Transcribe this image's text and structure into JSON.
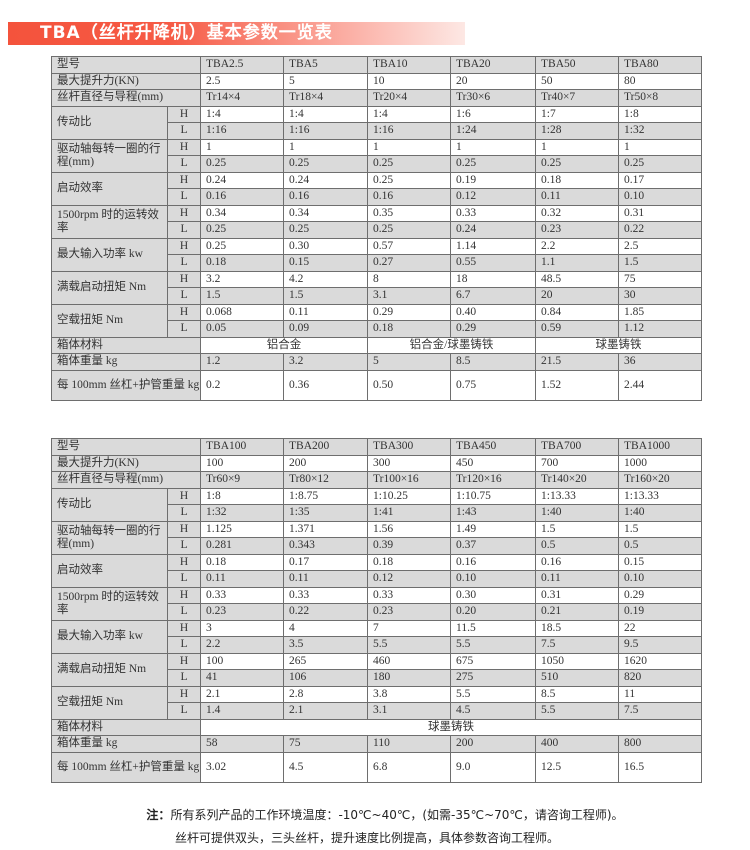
{
  "title": "TBA（丝杆升降机）基本参数一览表",
  "accent_color": "#f4533c",
  "tables": [
    {
      "header_label": "型号",
      "models": [
        "TBA2.5",
        "TBA5",
        "TBA10",
        "TBA20",
        "TBA50",
        "TBA80"
      ],
      "rows": [
        {
          "type": "simple",
          "label": "最大提升力(KN)",
          "values": [
            "2.5",
            "5",
            "10",
            "20",
            "50",
            "80"
          ]
        },
        {
          "type": "simple",
          "label": "丝杆直径与导程(mm)",
          "values": [
            "Tr14×4",
            "Tr18×4",
            "Tr20×4",
            "Tr30×6",
            "Tr40×7",
            "Tr50×8"
          ]
        },
        {
          "type": "pair",
          "label": "传动比",
          "H": [
            "1:4",
            "1:4",
            "1:4",
            "1:6",
            "1:7",
            "1:8"
          ],
          "L": [
            "1:16",
            "1:16",
            "1:16",
            "1:24",
            "1:28",
            "1:32"
          ]
        },
        {
          "type": "pair",
          "label": "驱动轴每转一圈的行程(mm)",
          "H": [
            "1",
            "1",
            "1",
            "1",
            "1",
            "1"
          ],
          "L": [
            "0.25",
            "0.25",
            "0.25",
            "0.25",
            "0.25",
            "0.25"
          ]
        },
        {
          "type": "pair",
          "label": "启动效率",
          "H": [
            "0.24",
            "0.24",
            "0.25",
            "0.19",
            "0.18",
            "0.17"
          ],
          "L": [
            "0.16",
            "0.16",
            "0.16",
            "0.12",
            "0.11",
            "0.10"
          ]
        },
        {
          "type": "pair",
          "label": "1500rpm 时的运转效率",
          "H": [
            "0.34",
            "0.34",
            "0.35",
            "0.33",
            "0.32",
            "0.31"
          ],
          "L": [
            "0.25",
            "0.25",
            "0.25",
            "0.24",
            "0.23",
            "0.22"
          ]
        },
        {
          "type": "pair",
          "label": "最大输入功率 kw",
          "H": [
            "0.25",
            "0.30",
            "0.57",
            "1.14",
            "2.2",
            "2.5"
          ],
          "L": [
            "0.18",
            "0.15",
            "0.27",
            "0.55",
            "1.1",
            "1.5"
          ]
        },
        {
          "type": "pair",
          "label": "满载启动扭矩 Nm",
          "H": [
            "3.2",
            "4.2",
            "8",
            "18",
            "48.5",
            "75"
          ],
          "L": [
            "1.5",
            "1.5",
            "3.1",
            "6.7",
            "20",
            "30"
          ]
        },
        {
          "type": "pair",
          "label": "空载扭矩 Nm",
          "H": [
            "0.068",
            "0.11",
            "0.29",
            "0.40",
            "0.84",
            "1.85"
          ],
          "L": [
            "0.05",
            "0.09",
            "0.18",
            "0.29",
            "0.59",
            "1.12"
          ]
        },
        {
          "type": "merged",
          "label": "箱体材料",
          "spans": [
            {
              "text": "铝合金",
              "cols": 2
            },
            {
              "text": "铝合金/球墨铸铁",
              "cols": 2
            },
            {
              "text": "球墨铸铁",
              "cols": 2
            }
          ]
        },
        {
          "type": "simple",
          "label": "箱体重量 kg",
          "values": [
            "1.2",
            "3.2",
            "5",
            "8.5",
            "21.5",
            "36"
          ]
        },
        {
          "type": "tall",
          "label": "每 100mm 丝杠+护管重量 kg",
          "values": [
            "0.2",
            "0.36",
            "0.50",
            "0.75",
            "1.52",
            "2.44"
          ]
        }
      ]
    },
    {
      "header_label": "型号",
      "models": [
        "TBA100",
        "TBA200",
        "TBA300",
        "TBA450",
        "TBA700",
        "TBA1000"
      ],
      "rows": [
        {
          "type": "simple",
          "label": "最大提升力(KN)",
          "values": [
            "100",
            "200",
            "300",
            "450",
            "700",
            "1000"
          ]
        },
        {
          "type": "simple",
          "label": "丝杆直径与导程(mm)",
          "values": [
            "Tr60×9",
            "Tr80×12",
            "Tr100×16",
            "Tr120×16",
            "Tr140×20",
            "Tr160×20"
          ]
        },
        {
          "type": "pair",
          "label": "传动比",
          "H": [
            "1:8",
            "1:8.75",
            "1:10.25",
            "1:10.75",
            "1:13.33",
            "1:13.33"
          ],
          "L": [
            "1:32",
            "1:35",
            "1:41",
            "1:43",
            "1:40",
            "1:40"
          ]
        },
        {
          "type": "pair",
          "label": "驱动轴每转一圈的行程(mm)",
          "H": [
            "1.125",
            "1.371",
            "1.56",
            "1.49",
            "1.5",
            "1.5"
          ],
          "L": [
            "0.281",
            "0.343",
            "0.39",
            "0.37",
            "0.5",
            "0.5"
          ]
        },
        {
          "type": "pair",
          "label": "启动效率",
          "H": [
            "0.18",
            "0.17",
            "0.18",
            "0.16",
            "0.16",
            "0.15"
          ],
          "L": [
            "0.11",
            "0.11",
            "0.12",
            "0.10",
            "0.11",
            "0.10"
          ]
        },
        {
          "type": "pair",
          "label": "1500rpm 时的运转效率",
          "H": [
            "0.33",
            "0.33",
            "0.33",
            "0.30",
            "0.31",
            "0.29"
          ],
          "L": [
            "0.23",
            "0.22",
            "0.23",
            "0.20",
            "0.21",
            "0.19"
          ]
        },
        {
          "type": "pair",
          "label": "最大输入功率 kw",
          "H": [
            "3",
            "4",
            "7",
            "11.5",
            "18.5",
            "22"
          ],
          "L": [
            "2.2",
            "3.5",
            "5.5",
            "5.5",
            "7.5",
            "9.5"
          ]
        },
        {
          "type": "pair",
          "label": "满载启动扭矩 Nm",
          "H": [
            "100",
            "265",
            "460",
            "675",
            "1050",
            "1620"
          ],
          "L": [
            "41",
            "106",
            "180",
            "275",
            "510",
            "820"
          ]
        },
        {
          "type": "pair",
          "label": "空载扭矩 Nm",
          "H": [
            "2.1",
            "2.8",
            "3.8",
            "5.5",
            "8.5",
            "11"
          ],
          "L": [
            "1.4",
            "2.1",
            "3.1",
            "4.5",
            "5.5",
            "7.5"
          ]
        },
        {
          "type": "merged",
          "label": "箱体材料",
          "spans": [
            {
              "text": "球墨铸铁",
              "cols": 6
            }
          ]
        },
        {
          "type": "simple",
          "label": "箱体重量 kg",
          "values": [
            "58",
            "75",
            "110",
            "200",
            "400",
            "800"
          ]
        },
        {
          "type": "tall",
          "label": "每 100mm 丝杠+护管重量 kg",
          "values": [
            "3.02",
            "4.5",
            "6.8",
            "9.0",
            "12.5",
            "16.5"
          ]
        }
      ]
    }
  ],
  "notes": {
    "prefix": "注：",
    "line1": "所有系列产品的工作环境温度：-10℃~40℃，(如需-35℃~70℃，请咨询工程师)。",
    "line2": "丝杆可提供双头，三头丝杆，提升速度比例提高，具体参数咨询工程师。"
  }
}
